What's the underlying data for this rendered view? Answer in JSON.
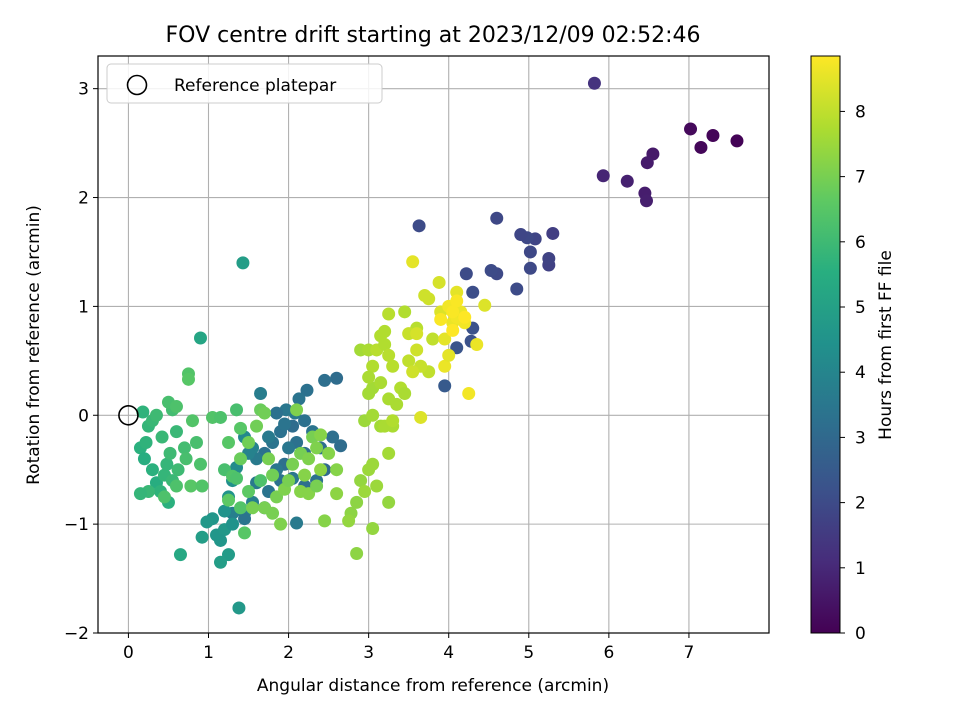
{
  "chart_data": {
    "type": "scatter",
    "title": "FOV centre drift starting at 2023/12/09 02:52:46",
    "xlabel": "Angular distance from reference (arcmin)",
    "ylabel": "Rotation from reference (arcmin)",
    "xlim": [
      -0.38,
      8.0
    ],
    "ylim": [
      -2.0,
      3.3
    ],
    "xticks": [
      0,
      1,
      2,
      3,
      4,
      5,
      6,
      7
    ],
    "yticks": [
      -2,
      -1,
      0,
      1,
      2,
      3
    ],
    "grid": true,
    "legend": {
      "placement": "top-left",
      "entries": [
        "Reference platepar"
      ]
    },
    "reference_point": {
      "x": 0.0,
      "y": 0.0
    },
    "colorbar": {
      "label": "Hours from first FF file",
      "colormap": "viridis",
      "range": [
        0,
        8.85
      ],
      "ticks": [
        0,
        1,
        2,
        3,
        4,
        5,
        6,
        7,
        8
      ]
    },
    "points": [
      [
        7.6,
        2.52,
        0.05
      ],
      [
        7.3,
        2.57,
        0.1
      ],
      [
        7.15,
        2.46,
        0.15
      ],
      [
        7.02,
        2.63,
        0.2
      ],
      [
        6.55,
        2.4,
        0.6
      ],
      [
        6.48,
        2.32,
        0.65
      ],
      [
        6.45,
        2.04,
        0.7
      ],
      [
        6.47,
        1.97,
        0.75
      ],
      [
        6.23,
        2.15,
        0.8
      ],
      [
        5.93,
        2.2,
        0.9
      ],
      [
        5.82,
        3.05,
        1.3
      ],
      [
        5.3,
        1.67,
        1.6
      ],
      [
        5.25,
        1.38,
        1.7
      ],
      [
        5.25,
        1.44,
        1.75
      ],
      [
        5.08,
        1.62,
        1.8
      ],
      [
        4.98,
        1.63,
        1.9
      ],
      [
        5.02,
        1.5,
        1.9
      ],
      [
        4.9,
        1.66,
        1.85
      ],
      [
        5.02,
        1.35,
        1.95
      ],
      [
        4.85,
        1.16,
        2.0
      ],
      [
        4.6,
        1.81,
        1.9
      ],
      [
        4.6,
        1.3,
        1.95
      ],
      [
        4.53,
        1.33,
        2.0
      ],
      [
        4.22,
        1.3,
        2.0
      ],
      [
        4.3,
        1.13,
        2.1
      ],
      [
        4.3,
        0.8,
        2.2
      ],
      [
        4.28,
        0.68,
        2.2
      ],
      [
        4.1,
        0.62,
        2.3
      ],
      [
        3.95,
        0.27,
        2.5
      ],
      [
        3.63,
        1.74,
        2.0
      ],
      [
        2.6,
        0.34,
        3.1
      ],
      [
        2.45,
        0.32,
        3.2
      ],
      [
        2.23,
        0.23,
        3.3
      ],
      [
        2.13,
        0.15,
        3.4
      ],
      [
        2.2,
        -0.05,
        3.3
      ],
      [
        1.97,
        0.05,
        3.5
      ],
      [
        1.85,
        0.02,
        3.3
      ],
      [
        2.08,
        0.02,
        3.6
      ],
      [
        1.65,
        0.2,
        3.7
      ],
      [
        2.65,
        -0.28,
        3.1
      ],
      [
        2.55,
        -0.2,
        3.2
      ],
      [
        2.4,
        -0.3,
        3.2
      ],
      [
        2.3,
        -0.15,
        3.4
      ],
      [
        2.2,
        -0.35,
        3.2
      ],
      [
        2.1,
        -0.25,
        3.3
      ],
      [
        2.0,
        -0.3,
        3.5
      ],
      [
        1.9,
        -0.15,
        3.3
      ],
      [
        1.8,
        -0.25,
        3.4
      ],
      [
        1.75,
        -0.2,
        3.6
      ],
      [
        1.95,
        -0.45,
        3.2
      ],
      [
        1.85,
        -0.5,
        3.5
      ],
      [
        1.7,
        -0.35,
        3.3
      ],
      [
        1.6,
        -0.4,
        3.6
      ],
      [
        1.55,
        -0.3,
        3.9
      ],
      [
        2.05,
        -0.1,
        3.1
      ],
      [
        1.95,
        -0.08,
        3.4
      ],
      [
        2.35,
        -0.6,
        3.3
      ],
      [
        2.45,
        -0.5,
        3.0
      ],
      [
        2.2,
        -0.65,
        3.2
      ],
      [
        2.05,
        -0.58,
        3.5
      ],
      [
        1.9,
        -0.6,
        3.3
      ],
      [
        1.75,
        -0.7,
        3.4
      ],
      [
        1.6,
        -0.62,
        3.6
      ],
      [
        1.55,
        -0.8,
        3.8
      ],
      [
        1.45,
        -0.9,
        4.0
      ],
      [
        1.7,
        -0.85,
        3.5
      ],
      [
        2.1,
        -0.99,
        3.6
      ],
      [
        1.45,
        -0.95,
        3.4
      ],
      [
        1.3,
        -0.9,
        3.8
      ],
      [
        1.45,
        -0.2,
        4.1
      ],
      [
        1.5,
        -0.35,
        3.9
      ],
      [
        1.35,
        -0.48,
        4.2
      ],
      [
        1.3,
        -0.6,
        4.4
      ],
      [
        1.25,
        -0.75,
        4.5
      ],
      [
        1.2,
        -0.88,
        4.5
      ],
      [
        1.05,
        -0.95,
        4.6
      ],
      [
        1.1,
        -1.1,
        4.6
      ],
      [
        1.2,
        -1.05,
        4.7
      ],
      [
        1.15,
        -1.15,
        4.6
      ],
      [
        1.3,
        -1.0,
        4.5
      ],
      [
        1.25,
        -1.28,
        4.8
      ],
      [
        1.15,
        -1.35,
        4.9
      ],
      [
        0.98,
        -0.98,
        4.7
      ],
      [
        0.92,
        -1.12,
        4.9
      ],
      [
        1.38,
        -1.77,
        4.7
      ],
      [
        1.43,
        1.4,
        4.9
      ],
      [
        0.9,
        0.71,
        5.2
      ],
      [
        0.65,
        -1.28,
        5.3
      ],
      [
        0.15,
        -0.3,
        5.6
      ],
      [
        0.2,
        -0.4,
        5.5
      ],
      [
        0.22,
        -0.25,
        5.7
      ],
      [
        0.3,
        -0.5,
        5.6
      ],
      [
        0.35,
        -0.62,
        5.5
      ],
      [
        0.4,
        -0.7,
        5.7
      ],
      [
        0.45,
        -0.55,
        5.8
      ],
      [
        0.5,
        -0.8,
        5.6
      ],
      [
        0.55,
        -0.6,
        5.9
      ],
      [
        0.25,
        -0.1,
        5.8
      ],
      [
        0.3,
        -0.05,
        5.9
      ],
      [
        0.35,
        0.0,
        6.0
      ],
      [
        0.42,
        -0.2,
        5.9
      ],
      [
        0.48,
        -0.45,
        5.8
      ],
      [
        0.52,
        -0.35,
        6.0
      ],
      [
        0.6,
        -0.15,
        5.9
      ],
      [
        0.62,
        -0.5,
        6.0
      ],
      [
        0.7,
        -0.3,
        6.1
      ],
      [
        0.55,
        0.05,
        6.1
      ],
      [
        0.18,
        0.03,
        5.7
      ],
      [
        0.25,
        -0.7,
        5.9
      ],
      [
        0.15,
        -0.72,
        5.8
      ],
      [
        0.5,
        0.12,
        6.2
      ],
      [
        0.6,
        0.08,
        6.3
      ],
      [
        0.75,
        0.38,
        6.4
      ],
      [
        0.75,
        0.33,
        6.5
      ],
      [
        0.8,
        -0.05,
        6.4
      ],
      [
        0.85,
        -0.25,
        6.2
      ],
      [
        0.9,
        -0.45,
        6.3
      ],
      [
        0.72,
        -0.4,
        6.2
      ],
      [
        0.6,
        -0.65,
        6.3
      ],
      [
        0.45,
        -0.75,
        6.3
      ],
      [
        0.78,
        -0.65,
        6.5
      ],
      [
        0.92,
        -0.65,
        6.4
      ],
      [
        1.05,
        -0.02,
        6.4
      ],
      [
        1.15,
        -0.02,
        6.3
      ],
      [
        1.25,
        -0.25,
        6.5
      ],
      [
        1.35,
        0.05,
        6.2
      ],
      [
        1.4,
        -0.12,
        6.5
      ],
      [
        1.2,
        -0.5,
        6.2
      ],
      [
        1.3,
        -0.56,
        6.4
      ],
      [
        1.35,
        -0.58,
        6.3
      ],
      [
        1.25,
        -0.78,
        6.6
      ],
      [
        1.4,
        -0.85,
        6.4
      ],
      [
        1.45,
        -1.08,
        6.5
      ],
      [
        1.5,
        -0.7,
        6.6
      ],
      [
        1.65,
        -0.6,
        6.3
      ],
      [
        1.4,
        -0.4,
        6.8
      ],
      [
        1.5,
        -0.25,
        6.9
      ],
      [
        1.6,
        -0.1,
        6.9
      ],
      [
        1.65,
        0.05,
        6.8
      ],
      [
        1.7,
        0.02,
        6.9
      ],
      [
        1.75,
        -0.4,
        7.0
      ],
      [
        1.8,
        -0.55,
        6.9
      ],
      [
        1.85,
        -0.75,
        7.0
      ],
      [
        1.8,
        -0.9,
        7.0
      ],
      [
        1.9,
        -1.0,
        7.1
      ],
      [
        1.95,
        -0.68,
        7.1
      ],
      [
        2.0,
        -0.6,
        7.0
      ],
      [
        2.05,
        -0.45,
        7.0
      ],
      [
        2.15,
        -0.35,
        7.0
      ],
      [
        2.2,
        -0.55,
        7.2
      ],
      [
        2.25,
        -0.4,
        7.1
      ],
      [
        2.3,
        -0.2,
        7.0
      ],
      [
        2.35,
        -0.3,
        7.1
      ],
      [
        2.4,
        -0.18,
        7.2
      ],
      [
        2.1,
        0.05,
        7.1
      ],
      [
        2.15,
        -0.7,
        7.2
      ],
      [
        2.25,
        -0.72,
        7.2
      ],
      [
        2.35,
        -0.65,
        7.0
      ],
      [
        2.4,
        -0.5,
        7.3
      ],
      [
        2.5,
        -0.35,
        7.2
      ],
      [
        2.45,
        -0.97,
        7.2
      ],
      [
        2.6,
        -0.5,
        7.2
      ],
      [
        2.6,
        -0.72,
        7.3
      ],
      [
        1.7,
        -0.85,
        7.0
      ],
      [
        1.55,
        -0.85,
        7.0
      ],
      [
        2.85,
        -0.8,
        7.3
      ],
      [
        2.78,
        -0.9,
        7.3
      ],
      [
        2.75,
        -0.97,
        7.4
      ],
      [
        2.85,
        -1.27,
        7.3
      ],
      [
        2.9,
        -0.6,
        7.4
      ],
      [
        2.95,
        -0.7,
        7.5
      ],
      [
        3.0,
        -0.5,
        7.5
      ],
      [
        3.05,
        -1.04,
        7.4
      ],
      [
        3.05,
        -0.45,
        7.5
      ],
      [
        3.1,
        -0.65,
        7.5
      ],
      [
        3.25,
        -0.35,
        7.6
      ],
      [
        3.25,
        -0.8,
        7.4
      ],
      [
        2.95,
        -0.05,
        7.5
      ],
      [
        3.05,
        0.0,
        7.6
      ],
      [
        3.15,
        -0.1,
        7.6
      ],
      [
        3.2,
        -0.1,
        7.7
      ],
      [
        3.3,
        -0.1,
        7.7
      ],
      [
        3.35,
        0.1,
        7.7
      ],
      [
        3.0,
        0.2,
        7.6
      ],
      [
        3.05,
        0.25,
        7.6
      ],
      [
        3.15,
        0.3,
        7.7
      ],
      [
        3.25,
        0.15,
        7.7
      ],
      [
        3.4,
        0.25,
        7.8
      ],
      [
        3.45,
        0.2,
        7.7
      ],
      [
        2.9,
        0.6,
        7.6
      ],
      [
        3.0,
        0.6,
        7.7
      ],
      [
        3.05,
        0.45,
        7.8
      ],
      [
        3.1,
        0.6,
        7.9
      ],
      [
        3.15,
        0.73,
        7.8
      ],
      [
        3.2,
        0.65,
        7.8
      ],
      [
        3.25,
        0.55,
        7.9
      ],
      [
        3.3,
        0.45,
        7.9
      ],
      [
        3.2,
        0.77,
        7.8
      ],
      [
        3.25,
        0.93,
        7.9
      ],
      [
        3.45,
        0.95,
        7.8
      ],
      [
        3.0,
        0.35,
        7.7
      ],
      [
        3.3,
        -0.05,
        7.8
      ],
      [
        3.6,
        0.8,
        7.9
      ],
      [
        3.75,
        0.4,
        8.0
      ],
      [
        3.8,
        0.7,
        8.0
      ],
      [
        3.5,
        0.75,
        8.1
      ],
      [
        3.5,
        0.5,
        8.0
      ],
      [
        3.6,
        0.6,
        8.2
      ],
      [
        3.65,
        0.45,
        8.1
      ],
      [
        3.55,
        0.4,
        8.2
      ],
      [
        3.75,
        1.07,
        8.2
      ],
      [
        3.7,
        1.1,
        8.2
      ],
      [
        3.6,
        0.75,
        8.3
      ],
      [
        3.65,
        -0.02,
        8.4
      ],
      [
        3.88,
        1.22,
        8.3
      ],
      [
        3.9,
        0.95,
        8.4
      ],
      [
        3.95,
        0.7,
        8.5
      ],
      [
        3.95,
        0.45,
        8.6
      ],
      [
        4.0,
        0.55,
        8.5
      ],
      [
        4.05,
        0.85,
        8.6
      ],
      [
        4.1,
        1.13,
        8.5
      ],
      [
        4.1,
        0.9,
        8.7
      ],
      [
        4.15,
        0.95,
        8.6
      ],
      [
        4.2,
        0.85,
        8.7
      ],
      [
        4.0,
        1.0,
        8.7
      ],
      [
        3.9,
        0.88,
        8.8
      ],
      [
        4.05,
        0.95,
        8.8
      ],
      [
        4.1,
        1.05,
        8.8
      ],
      [
        4.35,
        0.65,
        8.6
      ],
      [
        4.45,
        1.01,
        8.4
      ],
      [
        4.25,
        0.2,
        8.7
      ],
      [
        3.55,
        1.41,
        8.5
      ],
      [
        4.2,
        0.9,
        8.85
      ],
      [
        4.05,
        0.78,
        8.85
      ]
    ]
  }
}
